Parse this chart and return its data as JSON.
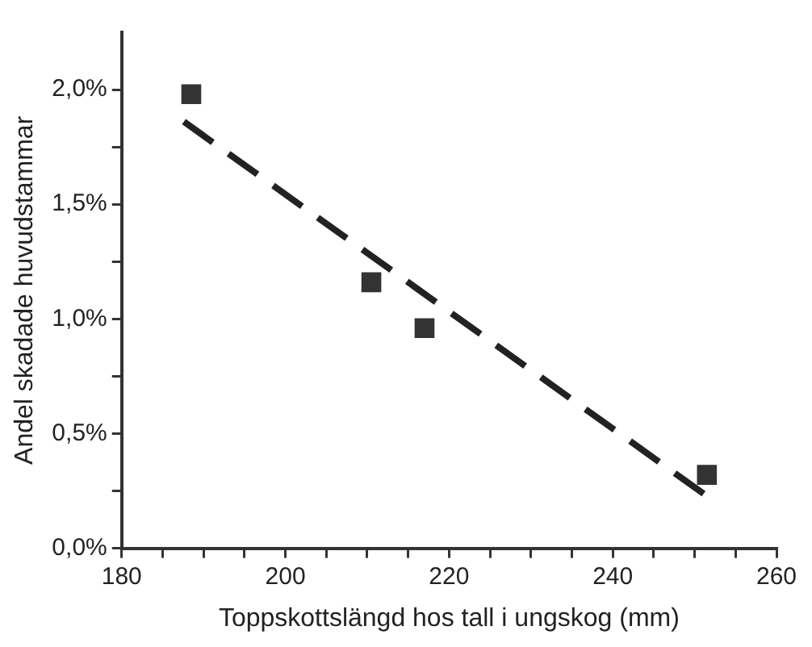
{
  "chart_data": {
    "type": "scatter",
    "xlabel": "Toppskottslängd hos tall i ungskog (mm)",
    "ylabel": "Andel skadade huvudstammar",
    "series": [
      {
        "color": "#333333",
        "marker": "square",
        "x": [
          188.5,
          210.5,
          217,
          251.5
        ],
        "values": [
          1.98,
          1.16,
          0.96,
          0.32
        ]
      },
      {
        "type": "line",
        "color": "#222222",
        "line_style": "dashed",
        "marker": "none",
        "x": [
          187.6,
          251.4
        ],
        "values": [
          1.86,
          0.23
        ]
      }
    ],
    "xlim": [
      180,
      260
    ],
    "xticks": [
      180,
      {
        "value": 185,
        "label": null
      },
      {
        "value": 190,
        "label": null
      },
      {
        "value": 195,
        "label": null
      },
      200,
      {
        "value": 205,
        "label": null
      },
      {
        "value": 210,
        "label": null
      },
      {
        "value": 215,
        "label": null
      },
      220,
      {
        "value": 225,
        "label": null
      },
      {
        "value": 230,
        "label": null
      },
      {
        "value": 235,
        "label": null
      },
      240,
      {
        "value": 245,
        "label": null
      },
      {
        "value": 250,
        "label": null
      },
      {
        "value": 255,
        "label": null
      },
      260
    ],
    "ylim": [
      0,
      2.25
    ],
    "yticks": [
      {
        "value": 0,
        "label": "0,0%"
      },
      {
        "value": 0.25,
        "label": null
      },
      {
        "value": 0.5,
        "label": "0,5%"
      },
      {
        "value": 0.75,
        "label": null
      },
      {
        "value": 1,
        "label": "1,0%"
      },
      {
        "value": 1.25,
        "label": null
      },
      {
        "value": 1.5,
        "label": "1,5%"
      },
      {
        "value": 1.75,
        "label": null
      },
      {
        "value": 2,
        "label": "2,0%"
      }
    ],
    "grid": false,
    "legend": false
  }
}
